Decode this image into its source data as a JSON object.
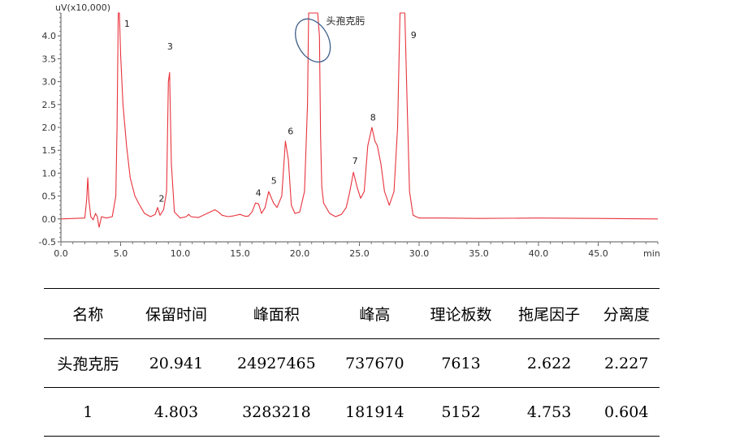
{
  "chart_data": {
    "type": "line",
    "ylabel": "uV(x10,000)",
    "xlabel": "min",
    "xlim": [
      0,
      50
    ],
    "ylim": [
      -0.5,
      4.5
    ],
    "x_ticks": [
      "0.0",
      "5.0",
      "10.0",
      "15.0",
      "20.0",
      "25.0",
      "30.0",
      "35.0",
      "40.0",
      "45.0"
    ],
    "y_ticks": [
      "-0.5",
      "0.0",
      "0.5",
      "1.0",
      "1.5",
      "2.0",
      "2.5",
      "3.0",
      "3.5",
      "4.0"
    ],
    "colors": {
      "trace": "#e8333c",
      "annotation_ellipse": "#3e5f8a"
    },
    "series": [
      {
        "x": [
          0,
          2.0,
          2.15,
          2.25,
          2.35,
          2.5,
          2.7,
          2.9,
          3.05,
          3.2,
          3.4,
          3.8,
          4.3,
          4.6,
          4.7,
          4.8,
          4.85,
          4.9,
          5.0,
          5.2,
          5.5,
          5.8,
          6.2,
          6.6,
          7.0,
          7.5,
          7.9,
          8.1,
          8.3,
          8.6,
          8.85,
          9.0,
          9.1,
          9.25,
          9.5,
          10.0,
          10.5,
          10.7,
          10.9,
          11.5,
          12.5,
          12.9,
          13.2,
          13.5,
          14.0,
          14.5,
          15.0,
          15.4,
          15.7,
          16.0,
          16.3,
          16.55,
          16.8,
          17.1,
          17.4,
          17.8,
          18.1,
          18.5,
          18.8,
          19.05,
          19.3,
          19.6,
          20.0,
          20.4,
          20.65,
          20.75,
          20.941,
          21.3,
          21.5,
          21.65,
          21.75,
          21.85,
          22.0,
          22.5,
          23.0,
          23.5,
          23.9,
          24.2,
          24.5,
          24.8,
          25.1,
          25.4,
          25.7,
          26.05,
          26.3,
          26.5,
          26.8,
          27.1,
          27.5,
          27.9,
          28.2,
          28.4,
          28.6,
          28.8,
          29.0,
          29.2,
          29.5,
          30.0,
          32.0,
          35.0,
          40.0,
          45.0,
          50.0
        ],
        "y": [
          0,
          0.02,
          0.4,
          0.9,
          0.4,
          0.05,
          -0.02,
          0.12,
          0.05,
          -0.18,
          0.05,
          0.02,
          0.05,
          0.5,
          2.0,
          4.5,
          4.6,
          4.5,
          3.6,
          2.5,
          1.6,
          0.9,
          0.5,
          0.3,
          0.12,
          0.05,
          0.1,
          0.25,
          0.08,
          0.2,
          0.6,
          3.0,
          3.2,
          1.2,
          0.15,
          0.02,
          0.05,
          0.1,
          0.05,
          0.03,
          0.15,
          0.2,
          0.15,
          0.08,
          0.05,
          0.07,
          0.1,
          0.06,
          0.06,
          0.15,
          0.35,
          0.33,
          0.12,
          0.25,
          0.6,
          0.35,
          0.25,
          0.5,
          1.7,
          1.3,
          0.3,
          0.12,
          0.15,
          0.6,
          2.5,
          4.6,
          4.6,
          4.6,
          4.6,
          4.0,
          1.8,
          0.7,
          0.35,
          0.12,
          0.05,
          0.1,
          0.25,
          0.6,
          1.02,
          0.7,
          0.45,
          0.6,
          1.6,
          2.0,
          1.7,
          1.6,
          1.2,
          0.6,
          0.3,
          0.6,
          2.0,
          4.6,
          4.6,
          4.6,
          2.5,
          0.6,
          0.08,
          0.02,
          0.02,
          0.01,
          0.02,
          0.01,
          0.0
        ]
      }
    ],
    "peak_labels": [
      {
        "text": "1",
        "x": 5.3,
        "y": 4.2
      },
      {
        "text": "2",
        "x": 8.2,
        "y": 0.38
      },
      {
        "text": "3",
        "x": 8.9,
        "y": 3.7
      },
      {
        "text": "4",
        "x": 16.3,
        "y": 0.5
      },
      {
        "text": "5",
        "x": 17.6,
        "y": 0.77
      },
      {
        "text": "6",
        "x": 19.0,
        "y": 1.85
      },
      {
        "text": "7",
        "x": 24.4,
        "y": 1.2
      },
      {
        "text": "8",
        "x": 25.9,
        "y": 2.15
      },
      {
        "text": "9",
        "x": 29.3,
        "y": 3.95
      }
    ],
    "annotation": {
      "text": "头孢克肟",
      "ellipse_center": [
        21.1,
        3.9
      ],
      "ellipse_rx": 1.3,
      "ellipse_ry": 0.5,
      "text_x": 22.2,
      "text_y": 4.25
    }
  },
  "table": {
    "headers": [
      "名称",
      "保留时间",
      "峰面积",
      "峰高",
      "理论板数",
      "拖尾因子",
      "分离度"
    ],
    "rows": [
      [
        "头孢克肟",
        "20.941",
        "24927465",
        "737670",
        "7613",
        "2.622",
        "2.227"
      ],
      [
        "1",
        "4.803",
        "3283218",
        "181914",
        "5152",
        "4.753",
        "0.604"
      ]
    ]
  }
}
